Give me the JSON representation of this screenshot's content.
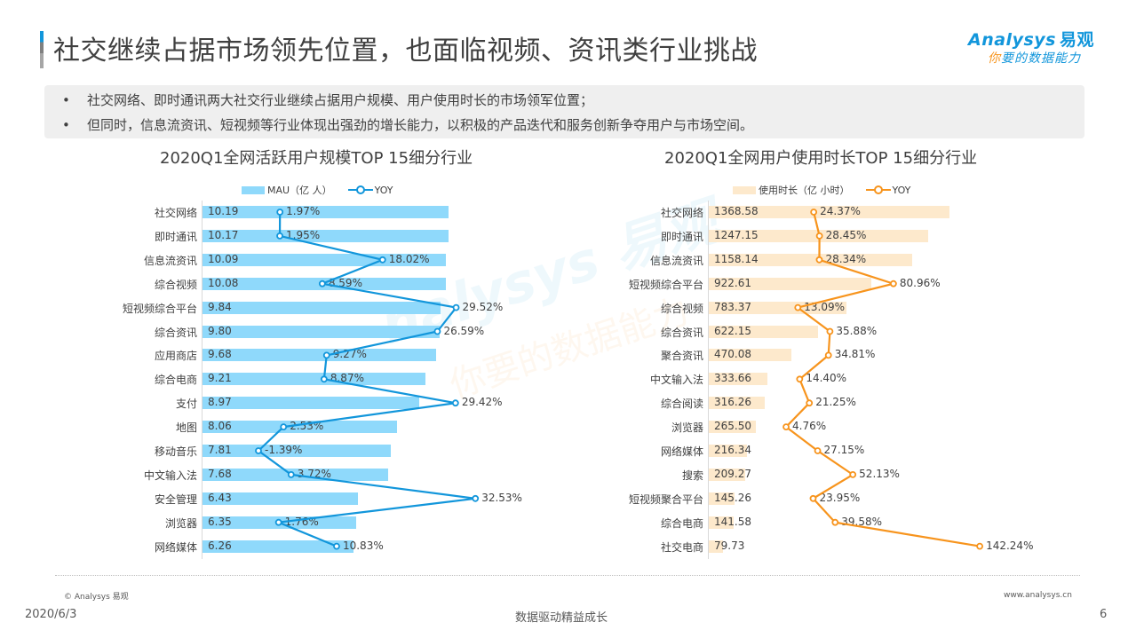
{
  "header": {
    "title": "社交继续占据市场领先位置，也面临视频、资讯类行业挑战",
    "logo_en": "Analysys",
    "logo_cn": "易观",
    "logo_slogan_first": "你",
    "logo_slogan_rest": "要的数据能力"
  },
  "bullets": [
    {
      "marker": "•",
      "text": "社交网络、即时通讯两大社交行业继续占据用户规模、用户使用时长的市场领军位置；"
    },
    {
      "marker": "•",
      "text": "但同时，信息流资讯、短视频等行业体现出强劲的增长能力，以积极的产品迭代和服务创新争夺用户与市场空间。"
    }
  ],
  "colors": {
    "mau_bar": "#8fd9fb",
    "mau_line": "#1296db",
    "time_bar": "#fde9cc",
    "time_line": "#f7941d"
  },
  "chart_data": [
    {
      "type": "bar",
      "orientation": "horizontal",
      "title": "2020Q1全网活跃用户规模TOP 15细分行业",
      "legend": [
        "MAU（亿 人）",
        "YOY"
      ],
      "legend_position": "top",
      "grid": false,
      "categories": [
        "社交网络",
        "即时通讯",
        "信息流资讯",
        "综合视频",
        "短视频综合平台",
        "综合资讯",
        "应用商店",
        "综合电商",
        "支付",
        "地图",
        "移动音乐",
        "中文输入法",
        "安全管理",
        "浏览器",
        "网络媒体"
      ],
      "series": [
        {
          "name": "MAU（亿 人）",
          "type": "bar",
          "values": [
            10.19,
            10.17,
            10.09,
            10.08,
            9.84,
            9.8,
            9.68,
            9.21,
            8.97,
            8.06,
            7.81,
            7.68,
            6.43,
            6.35,
            6.26
          ],
          "labels": [
            "10.19",
            "10.17",
            "10.09",
            "10.08",
            "9.84",
            "9.80",
            "9.68",
            "9.21",
            "8.97",
            "8.06",
            "7.81",
            "7.68",
            "6.43",
            "6.35",
            "6.26"
          ]
        },
        {
          "name": "YOY",
          "type": "line",
          "values": [
            1.97,
            1.95,
            18.02,
            8.59,
            29.52,
            26.59,
            9.27,
            8.87,
            29.42,
            2.53,
            -1.39,
            3.72,
            32.53,
            1.76,
            10.83
          ],
          "labels": [
            "1.97%",
            "1.95%",
            "18.02%",
            "8.59%",
            "29.52%",
            "26.59%",
            "9.27%",
            "8.87%",
            "29.42%",
            "2.53%",
            "-1.39%",
            "3.72%",
            "32.53%",
            "1.76%",
            "10.83%"
          ]
        }
      ]
    },
    {
      "type": "bar",
      "orientation": "horizontal",
      "title": "2020Q1全网用户使用时长TOP 15细分行业",
      "legend": [
        "使用时长（亿 小时）",
        "YOY"
      ],
      "legend_position": "top",
      "grid": false,
      "categories": [
        "社交网络",
        "即时通讯",
        "信息流资讯",
        "短视频综合平台",
        "综合视频",
        "综合资讯",
        "聚合资讯",
        "中文输入法",
        "综合阅读",
        "浏览器",
        "网络媒体",
        "搜索",
        "短视频聚合平台",
        "综合电商",
        "社交电商"
      ],
      "series": [
        {
          "name": "使用时长（亿 小时）",
          "type": "bar",
          "values": [
            1368.58,
            1247.15,
            1158.14,
            922.61,
            783.37,
            622.15,
            470.08,
            333.66,
            316.26,
            265.5,
            216.34,
            209.27,
            145.26,
            141.58,
            79.73
          ],
          "labels": [
            "1368.58",
            "1247.15",
            "1158.14",
            "922.61",
            "783.37",
            "622.15",
            "470.08",
            "333.66",
            "316.26",
            "265.50",
            "216.34",
            "209.27",
            "145.26",
            "141.58",
            "79.73"
          ]
        },
        {
          "name": "YOY",
          "type": "line",
          "values": [
            24.37,
            28.45,
            28.34,
            80.96,
            13.09,
            35.88,
            34.81,
            14.4,
            21.25,
            4.76,
            27.15,
            52.13,
            23.95,
            39.58,
            142.24
          ],
          "labels": [
            "24.37%",
            "28.45%",
            "28.34%",
            "80.96%",
            "13.09%",
            "35.88%",
            "34.81%",
            "14.40%",
            "21.25%",
            "4.76%",
            "27.15%",
            "52.13%",
            "23.95%",
            "39.58%",
            "142.24%"
          ]
        }
      ]
    }
  ],
  "footer": {
    "copyright": "© Analysys 易观",
    "website": "www.analysys.cn",
    "date": "2020/6/3",
    "slogan": "数据驱动精益成长",
    "page_number": "6"
  }
}
